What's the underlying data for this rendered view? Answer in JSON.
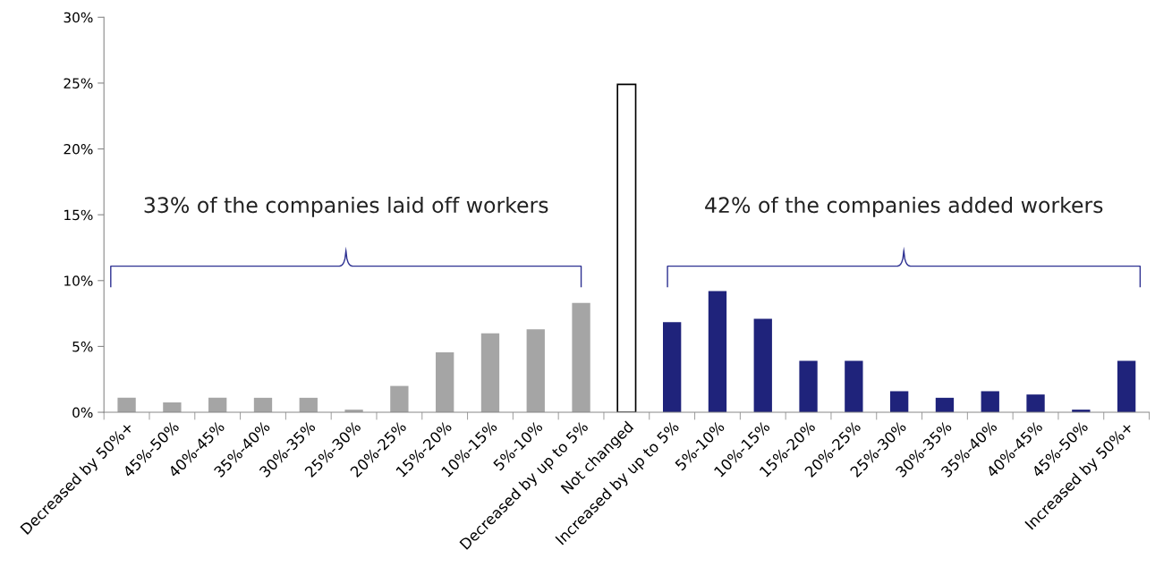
{
  "chart_data": {
    "type": "bar",
    "categories": [
      "Decreased by 50%+",
      "45%-50%",
      "40%-45%",
      "35%-40%",
      "30%-35%",
      "25%-30%",
      "20%-25%",
      "15%-20%",
      "10%-15%",
      "5%-10%",
      "Decreased by up to 5%",
      "Not changed",
      "Increased by up to 5%",
      "5%-10%",
      "10%-15%",
      "15%-20%",
      "20%-25%",
      "25%-30%",
      "30%-35%",
      "35%-40%",
      "40%-45%",
      "45%-50%",
      "Increased by 50%+"
    ],
    "values": [
      1.1,
      0.75,
      1.1,
      1.1,
      1.1,
      0.2,
      2.0,
      4.55,
      6.0,
      6.3,
      8.3,
      24.9,
      6.85,
      9.2,
      7.1,
      3.9,
      3.9,
      1.6,
      1.1,
      1.6,
      1.35,
      0.2,
      3.9
    ],
    "colors": [
      "#a5a5a5",
      "#a5a5a5",
      "#a5a5a5",
      "#a5a5a5",
      "#a5a5a5",
      "#a5a5a5",
      "#a5a5a5",
      "#a5a5a5",
      "#a5a5a5",
      "#a5a5a5",
      "#a5a5a5",
      "#ffffff",
      "#1f237b",
      "#1f237b",
      "#1f237b",
      "#1f237b",
      "#1f237b",
      "#1f237b",
      "#1f237b",
      "#1f237b",
      "#1f237b",
      "#1f237b",
      "#1f237b"
    ],
    "ylim": [
      0,
      30
    ],
    "yticks": [
      {
        "value": 0,
        "label": "0%"
      },
      {
        "value": 5,
        "label": "5%"
      },
      {
        "value": 10,
        "label": "10%"
      },
      {
        "value": 15,
        "label": "15%"
      },
      {
        "value": 20,
        "label": "20%"
      },
      {
        "value": 25,
        "label": "25%"
      },
      {
        "value": 30,
        "label": "30%"
      }
    ],
    "annotations": [
      "33% of the companies laid off workers",
      "42% of the companies added workers"
    ],
    "grid": false,
    "legend": false
  }
}
